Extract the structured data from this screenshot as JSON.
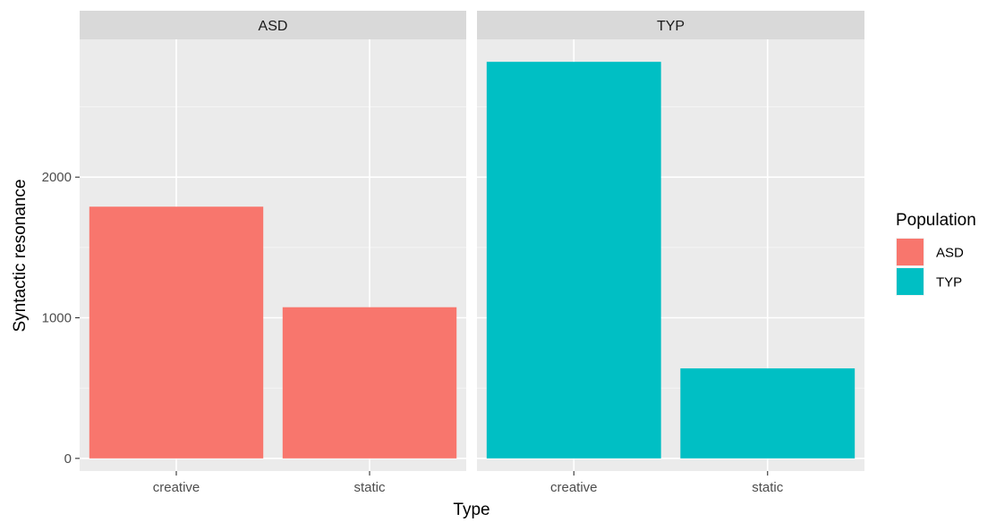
{
  "chart_data": {
    "type": "bar",
    "facet_by": "Population",
    "facets": [
      {
        "label": "ASD",
        "categories": [
          "creative",
          "static"
        ],
        "values": [
          1790,
          1075
        ],
        "color": "#F8766D"
      },
      {
        "label": "TYP",
        "categories": [
          "creative",
          "static"
        ],
        "values": [
          2820,
          640
        ],
        "color": "#00BFC4"
      }
    ],
    "xlabel": "Type",
    "ylabel": "Syntactic resonance",
    "ylim": [
      -90,
      2980
    ],
    "yticks": [
      0,
      1000,
      2000
    ],
    "grid": true,
    "legend": {
      "title": "Population",
      "placement": "right",
      "items": [
        {
          "label": "ASD",
          "color": "#F8766D"
        },
        {
          "label": "TYP",
          "color": "#00BFC4"
        }
      ]
    }
  }
}
